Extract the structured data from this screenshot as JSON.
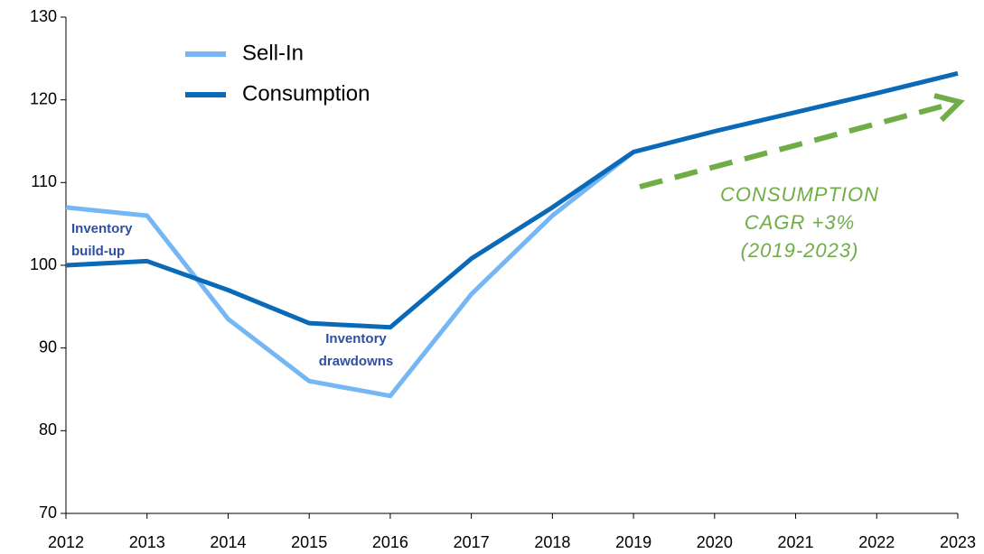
{
  "chart_data": {
    "type": "line",
    "categories": [
      "2012",
      "2013",
      "2014",
      "2015",
      "2016",
      "2017",
      "2018",
      "2019",
      "2020",
      "2021",
      "2022",
      "2023"
    ],
    "series": [
      {
        "name": "Sell-In",
        "color": "#75b7f5",
        "values": [
          107,
          106,
          93.5,
          86,
          84.2,
          96.5,
          106,
          113.7,
          null,
          null,
          null,
          null
        ]
      },
      {
        "name": "Consumption",
        "color": "#0a6ab8",
        "values": [
          100,
          100.5,
          97,
          93,
          92.5,
          100.8,
          107,
          113.7,
          116.2,
          118.5,
          120.8,
          123.2
        ]
      }
    ],
    "ylim": [
      70,
      130
    ],
    "yticks": [
      70,
      80,
      90,
      100,
      110,
      120,
      130
    ],
    "legend": "upper left",
    "annotations": {
      "buildup": [
        "Inventory",
        "build-up"
      ],
      "drawdowns": [
        "Inventory",
        "drawdowns"
      ],
      "cagr": [
        "CONSUMPTION",
        "CAGR +3%",
        "(2019-2023)"
      ]
    }
  }
}
